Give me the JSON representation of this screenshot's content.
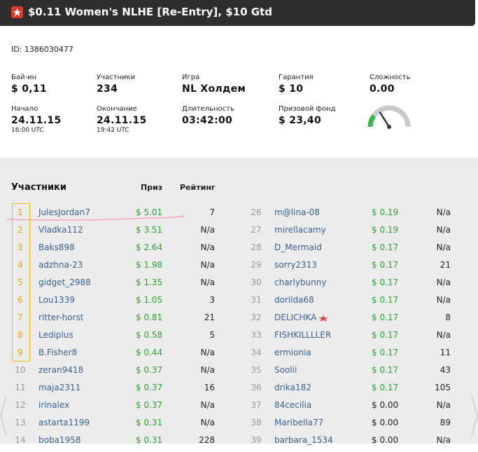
{
  "window": {
    "title": "$0.11 Women's NLHE [Re-Entry], $10 Gtd"
  },
  "info": {
    "id_text": "ID: 1386030477",
    "buyin": {
      "label": "Бай-ин",
      "value": "$ 0,11"
    },
    "players": {
      "label": "Участники",
      "value": "234"
    },
    "game": {
      "label": "Игра",
      "value": "NL Холдем"
    },
    "guarantee": {
      "label": "Гарантия",
      "value": "$ 10"
    },
    "difficulty": {
      "label": "Сложность",
      "value": "0.00"
    },
    "start": {
      "label": "Начало",
      "date": "24.11.15",
      "time": "16:00 UTC"
    },
    "end": {
      "label": "Окончание",
      "date": "24.11.15",
      "time": "19:42 UTC"
    },
    "duration": {
      "label": "Длительность",
      "value": "03:42:00"
    },
    "prizepool": {
      "label": "Призовой фонд",
      "value": "$ 23,40"
    }
  },
  "gauge": {
    "level": 0.2,
    "colors": {
      "arc": "#c8c8c8",
      "fill": "#3cb54a",
      "needle": "#333333"
    }
  },
  "participants": {
    "heading": "Участники",
    "col_prize": "Приз",
    "col_rating": "Рейтинг",
    "left": [
      {
        "rank": "1",
        "name": "JulesJordan7",
        "prize": "$ 5.01",
        "rating": "7"
      },
      {
        "rank": "2",
        "name": "Vladka112",
        "prize": "$ 3.51",
        "rating": "N/a"
      },
      {
        "rank": "3",
        "name": "Baks898",
        "prize": "$ 2.64",
        "rating": "N/a"
      },
      {
        "rank": "4",
        "name": "adzhna-23",
        "prize": "$ 1.98",
        "rating": "N/a"
      },
      {
        "rank": "5",
        "name": "gidget_2988",
        "prize": "$ 1.35",
        "rating": "N/a"
      },
      {
        "rank": "6",
        "name": "Lou1339",
        "prize": "$ 1.05",
        "rating": "3"
      },
      {
        "rank": "7",
        "name": "ritter-horst",
        "prize": "$ 0.81",
        "rating": "21"
      },
      {
        "rank": "8",
        "name": "Lediplus",
        "prize": "$ 0.58",
        "rating": "5"
      },
      {
        "rank": "9",
        "name": "B.Fisher8",
        "prize": "$ 0.44",
        "rating": "N/a"
      },
      {
        "rank": "10",
        "name": "zeran9418",
        "prize": "$ 0.37",
        "rating": "N/a"
      },
      {
        "rank": "11",
        "name": "maja2311",
        "prize": "$ 0.37",
        "rating": "16"
      },
      {
        "rank": "12",
        "name": "irinalex",
        "prize": "$ 0.37",
        "rating": "N/a"
      },
      {
        "rank": "13",
        "name": "astarta1199",
        "prize": "$ 0.31",
        "rating": "N/a"
      },
      {
        "rank": "14",
        "name": "boba1958",
        "prize": "$ 0.31",
        "rating": "228"
      }
    ],
    "right": [
      {
        "rank": "26",
        "name": "m@lina-08",
        "prize": "$ 0.19",
        "rating": "N/a"
      },
      {
        "rank": "27",
        "name": "mirellacamy",
        "prize": "$ 0.19",
        "rating": "N/a"
      },
      {
        "rank": "28",
        "name": "D_Mermaid",
        "prize": "$ 0.17",
        "rating": "N/a"
      },
      {
        "rank": "29",
        "name": "sorry2313",
        "prize": "$ 0.17",
        "rating": "21"
      },
      {
        "rank": "30",
        "name": "charlybunny",
        "prize": "$ 0.17",
        "rating": "N/a"
      },
      {
        "rank": "31",
        "name": "dorilda68",
        "prize": "$ 0.17",
        "rating": "N/a"
      },
      {
        "rank": "32",
        "name": "DELICHKA",
        "prize": "$ 0.17",
        "rating": "8",
        "flag": true
      },
      {
        "rank": "33",
        "name": "FISHKILLLLER",
        "prize": "$ 0.17",
        "rating": "N/a"
      },
      {
        "rank": "34",
        "name": "ermionia",
        "prize": "$ 0.17",
        "rating": "11"
      },
      {
        "rank": "35",
        "name": "Soolii",
        "prize": "$ 0.17",
        "rating": "43"
      },
      {
        "rank": "36",
        "name": "drika182",
        "prize": "$ 0.17",
        "rating": "105"
      },
      {
        "rank": "37",
        "name": "84cecilia",
        "prize": "$ 0.00",
        "rating": "N/a"
      },
      {
        "rank": "38",
        "name": "Maribella77",
        "prize": "$ 0.00",
        "rating": "89"
      },
      {
        "rank": "39",
        "name": "barbara_1534",
        "prize": "$ 0.00",
        "rating": "N/a"
      }
    ]
  }
}
